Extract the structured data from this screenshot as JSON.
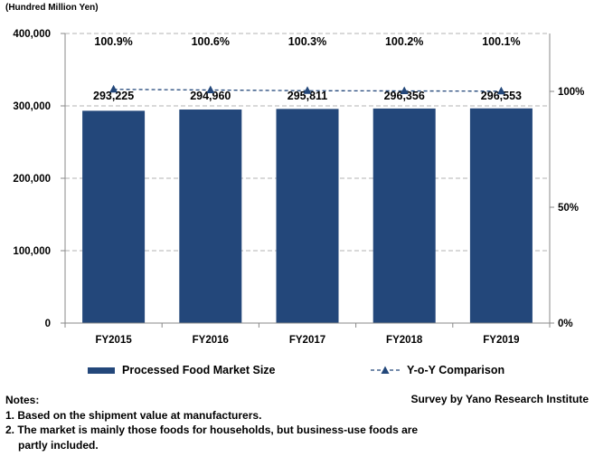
{
  "unit_label": "(Hundred Million Yen)",
  "chart_data": {
    "type": "bar",
    "categories": [
      "FY2015",
      "FY2016",
      "FY2017",
      "FY2018",
      "FY2019"
    ],
    "series": [
      {
        "name": "Processed Food Market Size",
        "type": "bar",
        "axis": "left",
        "values": [
          293225,
          294960,
          295811,
          296356,
          296553
        ],
        "labels": [
          "293,225",
          "294,960",
          "295,811",
          "296,356",
          "296,553"
        ],
        "color": "#23477A"
      },
      {
        "name": "Y-o-Y Comparison",
        "type": "line",
        "axis": "right",
        "values": [
          100.9,
          100.6,
          100.3,
          100.2,
          100.1
        ],
        "labels": [
          "100.9%",
          "100.6%",
          "100.3%",
          "100.2%",
          "100.1%"
        ],
        "color": "#23477A",
        "line_style": "dashed",
        "marker": "triangle"
      }
    ],
    "ylim": [
      0,
      400000
    ],
    "yticks": [
      0,
      100000,
      200000,
      300000,
      400000
    ],
    "yticklabels": [
      "0",
      "100,000",
      "200,000",
      "300,000",
      "400,000"
    ],
    "y2lim": [
      0,
      125
    ],
    "y2ticks": [
      0,
      50,
      100
    ],
    "y2ticklabels": [
      "0%",
      "50%",
      "100%"
    ],
    "grid": true,
    "legend_position": "bottom"
  },
  "notes": {
    "heading": "Notes:",
    "lines": [
      "1. Based on the shipment value at manufacturers.",
      "2. The market is mainly those foods for households, but business-use foods are",
      "partly included."
    ]
  },
  "source": "Survey by Yano Research Institute"
}
